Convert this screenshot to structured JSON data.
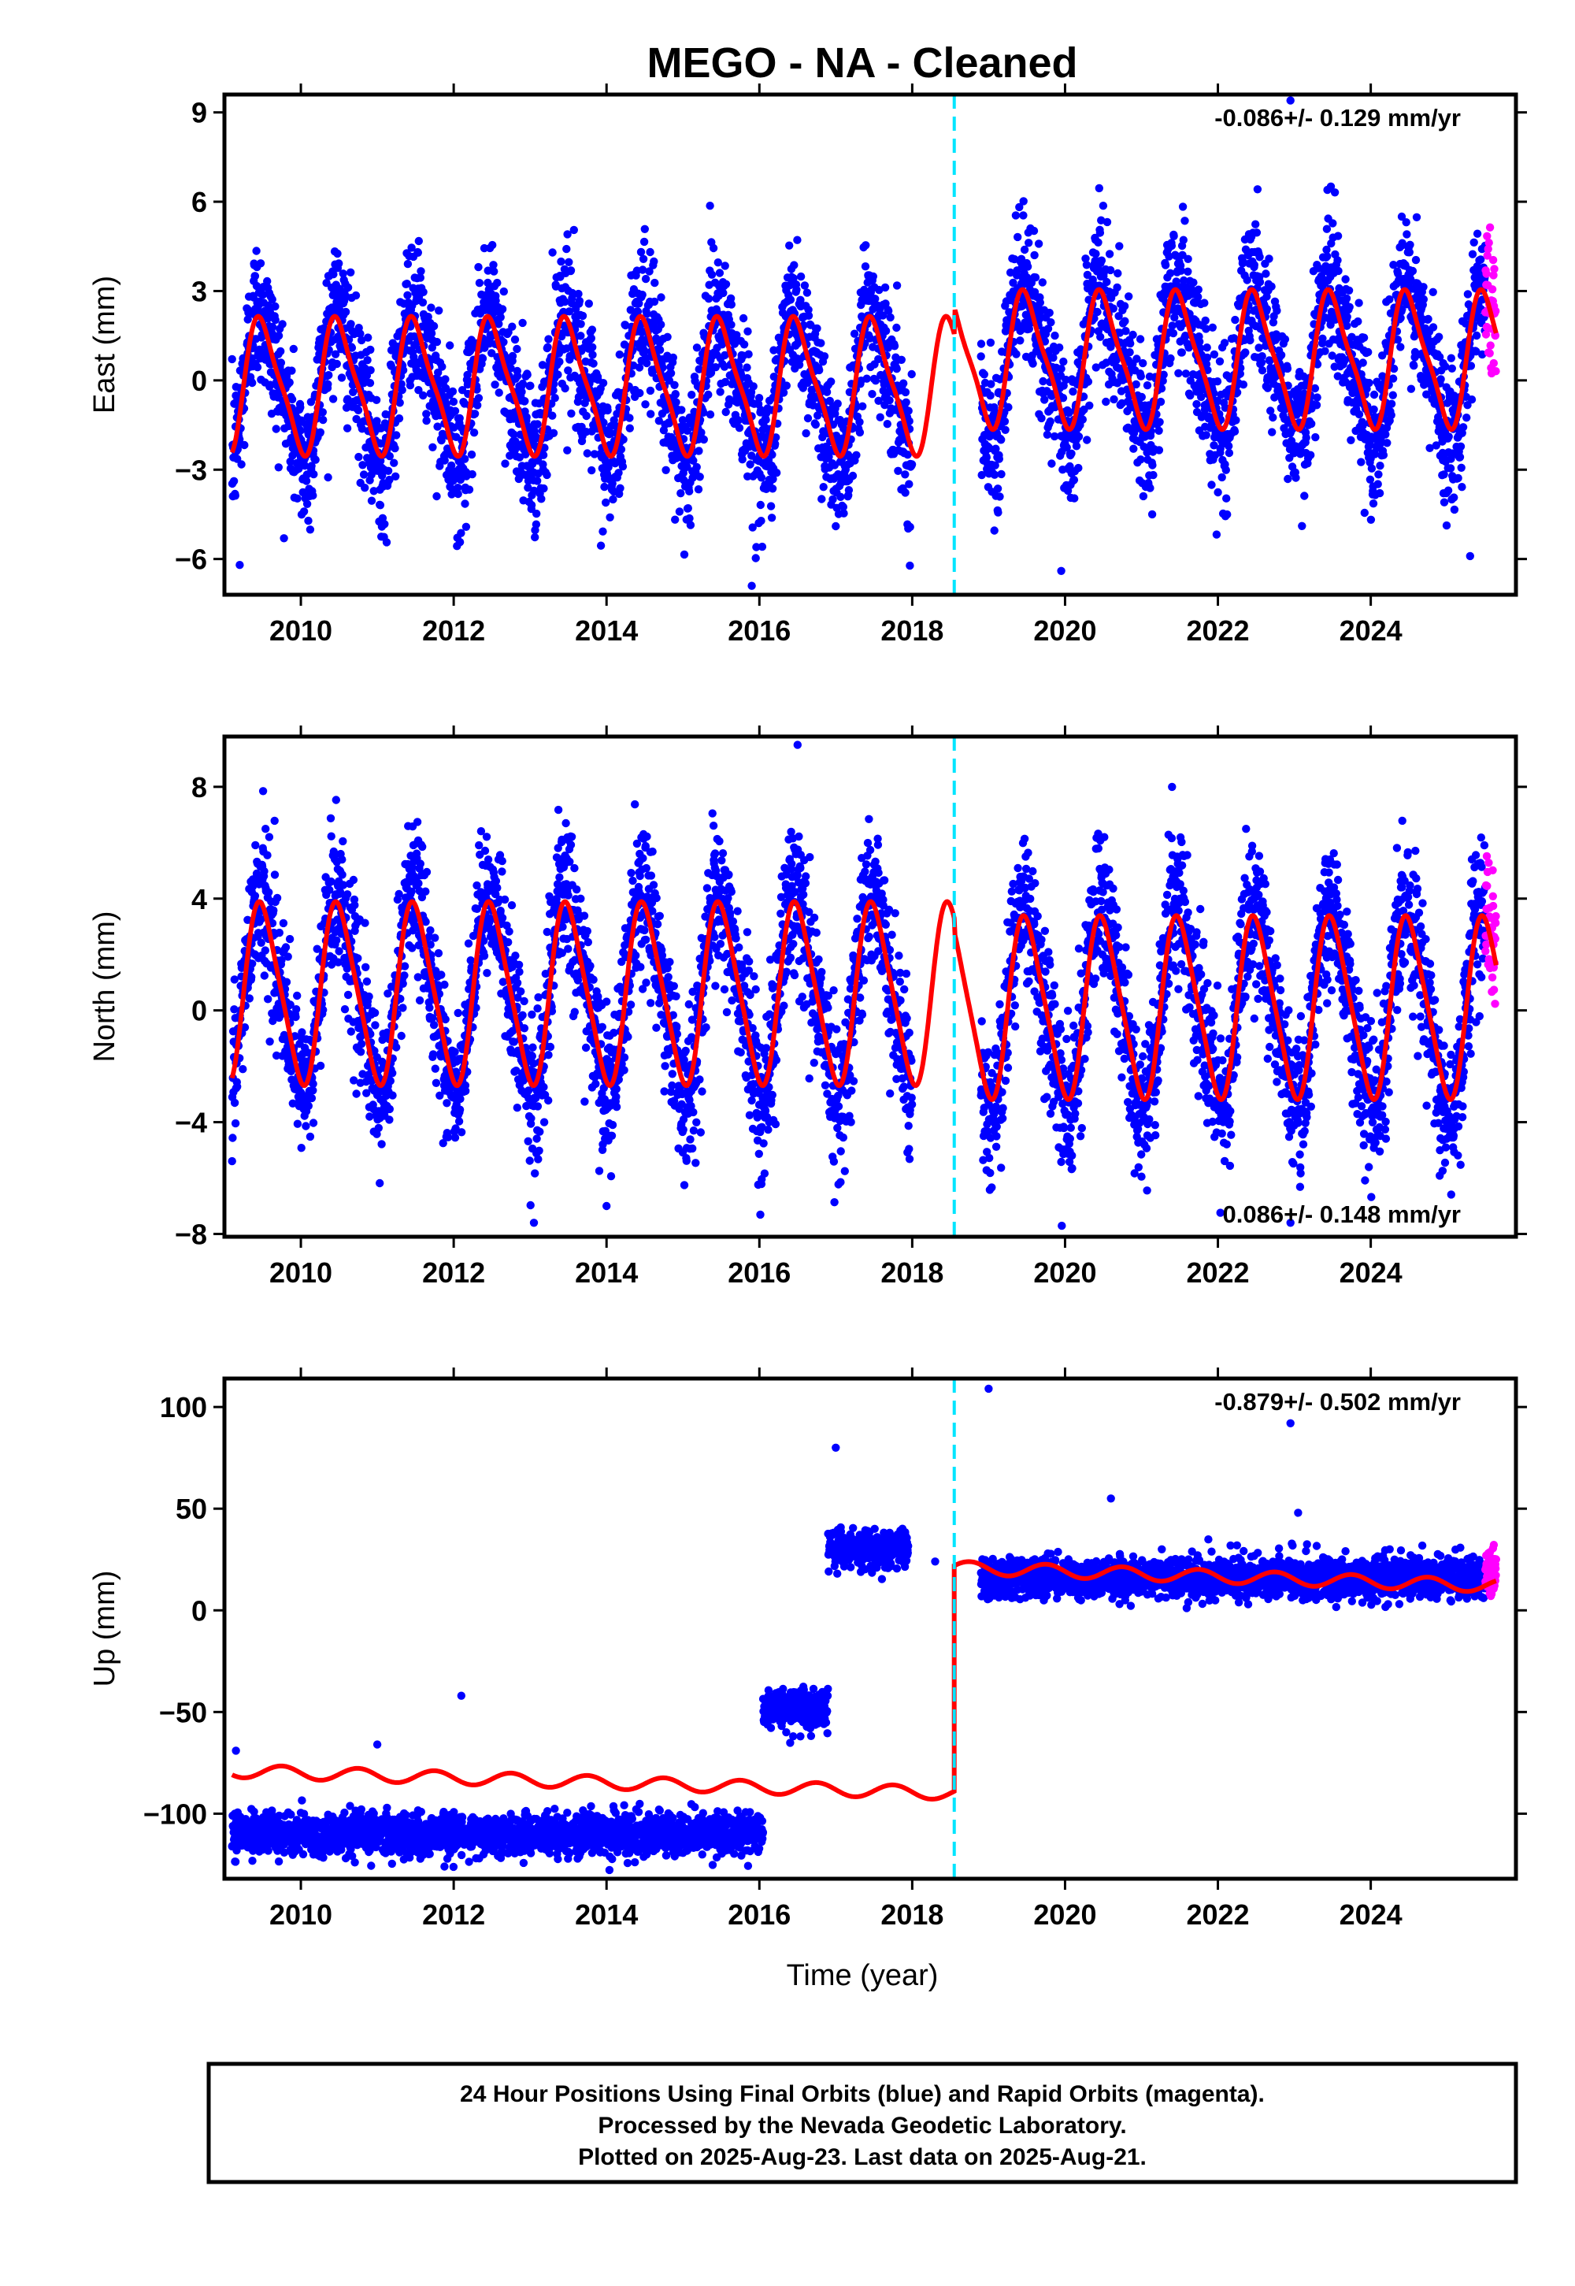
{
  "title": "MEGO  - NA - Cleaned",
  "x_axis_label": "Time (year)",
  "caption": {
    "line1": "24 Hour Positions Using Final Orbits (blue) and Rapid Orbits (magenta).",
    "line2": "Processed by the Nevada Geodetic Laboratory.",
    "line3": "Plotted on 2025-Aug-23. Last data on 2025-Aug-21."
  },
  "colors": {
    "final_orbits": "#0000ff",
    "rapid_orbits": "#ff00ff",
    "model_fit": "#ff0000",
    "equipment_change": "#00e5ff",
    "frame": "#000000"
  },
  "chart_data": [
    {
      "type": "scatter",
      "component": "East",
      "ylabel": "East (mm)",
      "rate_text": "-0.086+/- 0.129 mm/yr",
      "xlim": [
        2009.0,
        2025.9
      ],
      "ylim": [
        -7.2,
        9.6
      ],
      "xticks": [
        2010,
        2012,
        2014,
        2016,
        2018,
        2020,
        2022,
        2024
      ],
      "yticks": [
        -6,
        -3,
        0,
        3,
        6,
        9
      ],
      "ytick_labels": [
        "−6",
        "−3",
        "0",
        "3",
        "6",
        "9"
      ],
      "step_epoch": 2018.55,
      "data_start": 2009.1,
      "data_end": 2025.64,
      "gap": [
        2018.0,
        2018.9
      ],
      "rapid_start": 2025.5,
      "seasonal_amplitude": 2.4,
      "trend_offset": -0.2,
      "step_offset": 0.9,
      "scatter_noise": 1.2,
      "outliers": [
        [
          2009.2,
          -6.2
        ],
        [
          2015.9,
          -6.9
        ],
        [
          2019.95,
          -6.4
        ],
        [
          2022.95,
          9.4
        ],
        [
          2025.3,
          -5.9
        ]
      ]
    },
    {
      "type": "scatter",
      "component": "North",
      "ylabel": "North (mm)",
      "rate_text": "0.086+/- 0.148 mm/yr",
      "xlim": [
        2009.0,
        2025.9
      ],
      "ylim": [
        -8.1,
        9.8
      ],
      "xticks": [
        2010,
        2012,
        2014,
        2016,
        2018,
        2020,
        2022,
        2024
      ],
      "yticks": [
        -8,
        -4,
        0,
        4,
        8
      ],
      "ytick_labels": [
        "−8",
        "−4",
        "0",
        "4",
        "8"
      ],
      "step_epoch": 2018.55,
      "data_start": 2009.1,
      "data_end": 2025.64,
      "gap": [
        2018.0,
        2018.9
      ],
      "rapid_start": 2025.5,
      "seasonal_amplitude": 3.5,
      "trend_offset": 0.6,
      "step_offset": -0.5,
      "scatter_noise": 1.3,
      "outliers": [
        [
          2013.05,
          -7.6
        ],
        [
          2016.5,
          9.5
        ],
        [
          2021.4,
          8.0
        ],
        [
          2022.95,
          -7.6
        ],
        [
          2014.0,
          -7.0
        ]
      ]
    },
    {
      "type": "scatter",
      "component": "Up",
      "ylabel": "Up (mm)",
      "rate_text": "-0.879+/- 0.502 mm/yr",
      "xlim": [
        2009.0,
        2025.9
      ],
      "ylim": [
        -132,
        114
      ],
      "xticks": [
        2010,
        2012,
        2014,
        2016,
        2018,
        2020,
        2022,
        2024
      ],
      "yticks": [
        -100,
        -50,
        0,
        50,
        100
      ],
      "ytick_labels": [
        "−100",
        "−50",
        "0",
        "50",
        "100"
      ],
      "step_epoch": 2018.55,
      "data_start": 2009.1,
      "data_end": 2025.64,
      "segments": [
        {
          "start": 2009.1,
          "end": 2016.05,
          "level": -110,
          "noise": 5
        },
        {
          "start": 2016.05,
          "end": 2016.9,
          "level": -48,
          "noise": 5
        },
        {
          "start": 2016.9,
          "end": 2017.95,
          "level": 30,
          "noise": 5
        },
        {
          "start": 2018.9,
          "end": 2025.64,
          "level": 16,
          "noise": 5
        }
      ],
      "rapid_start": 2025.5,
      "model_segments": [
        {
          "start": 2009.1,
          "end": 2018.55,
          "level_start": -79,
          "level_end": -90,
          "amplitude": 3.2
        },
        {
          "start": 2018.55,
          "end": 2025.64,
          "level_start": 21,
          "level_end": 12,
          "amplitude": 3.2
        }
      ],
      "outliers": [
        [
          2009.15,
          -69
        ],
        [
          2011.0,
          -66
        ],
        [
          2012.1,
          -42
        ],
        [
          2017.0,
          80
        ],
        [
          2018.3,
          24
        ],
        [
          2019.0,
          109
        ],
        [
          2020.6,
          55
        ],
        [
          2022.95,
          92
        ],
        [
          2023.05,
          48
        ]
      ]
    }
  ]
}
